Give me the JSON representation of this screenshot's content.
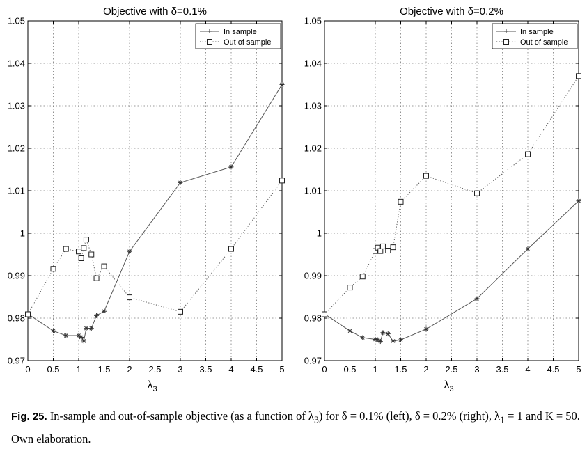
{
  "chart_data": [
    {
      "type": "line",
      "title": "Objective with δ=0.1%",
      "xlabel": "λ3",
      "ylabel": "",
      "xlim": [
        0,
        5
      ],
      "ylim": [
        0.97,
        1.05
      ],
      "xticks": [
        "0",
        "0.5",
        "1",
        "1.5",
        "2",
        "2.5",
        "3",
        "3.5",
        "4",
        "4.5",
        "5"
      ],
      "yticks": [
        "0.97",
        "0.98",
        "0.99",
        "1",
        "1.01",
        "1.02",
        "1.03",
        "1.04",
        "1.05"
      ],
      "grid": true,
      "legend_position": "top-right",
      "series": [
        {
          "name": "In sample",
          "style": "solid-star",
          "color": "#555555",
          "points": [
            [
              0,
              0.981
            ],
            [
              0.5,
              0.977
            ],
            [
              0.75,
              0.9759
            ],
            [
              1.0,
              0.9759
            ],
            [
              1.05,
              0.9755
            ],
            [
              1.1,
              0.9746
            ],
            [
              1.15,
              0.9776
            ],
            [
              1.25,
              0.9776
            ],
            [
              1.35,
              0.9806
            ],
            [
              1.5,
              0.9816
            ],
            [
              2.0,
              0.9957
            ],
            [
              3.0,
              1.0119
            ],
            [
              4.0,
              1.0156
            ],
            [
              5.0,
              1.035
            ]
          ]
        },
        {
          "name": "Out of sample",
          "style": "dotted-square",
          "color": "#555555",
          "points": [
            [
              0,
              0.9809
            ],
            [
              0.5,
              0.9916
            ],
            [
              0.75,
              0.9963
            ],
            [
              1.0,
              0.9957
            ],
            [
              1.05,
              0.9941
            ],
            [
              1.1,
              0.9965
            ],
            [
              1.15,
              0.9985
            ],
            [
              1.25,
              0.995
            ],
            [
              1.35,
              0.9894
            ],
            [
              1.5,
              0.9922
            ],
            [
              2.0,
              0.9849
            ],
            [
              3.0,
              0.9815
            ],
            [
              4.0,
              0.9963
            ],
            [
              5.0,
              1.0124
            ]
          ]
        }
      ]
    },
    {
      "type": "line",
      "title": "Objective with δ=0.2%",
      "xlabel": "λ3",
      "ylabel": "",
      "xlim": [
        0,
        5
      ],
      "ylim": [
        0.97,
        1.05
      ],
      "xticks": [
        "0",
        "0.5",
        "1",
        "1.5",
        "2",
        "2.5",
        "3",
        "3.5",
        "4",
        "4.5",
        "5"
      ],
      "yticks": [
        "0.97",
        "0.98",
        "0.99",
        "1",
        "1.01",
        "1.02",
        "1.03",
        "1.04",
        "1.05"
      ],
      "grid": true,
      "legend_position": "top-right",
      "series": [
        {
          "name": "In sample",
          "style": "solid-star",
          "color": "#555555",
          "points": [
            [
              0,
              0.981
            ],
            [
              0.5,
              0.977
            ],
            [
              0.75,
              0.9754
            ],
            [
              1.0,
              0.975
            ],
            [
              1.05,
              0.9749
            ],
            [
              1.1,
              0.9745
            ],
            [
              1.15,
              0.9766
            ],
            [
              1.25,
              0.9763
            ],
            [
              1.35,
              0.9746
            ],
            [
              1.5,
              0.9749
            ],
            [
              2.0,
              0.9774
            ],
            [
              3.0,
              0.9846
            ],
            [
              4.0,
              0.9963
            ],
            [
              5.0,
              1.0076
            ]
          ]
        },
        {
          "name": "Out of sample",
          "style": "dotted-square",
          "color": "#555555",
          "points": [
            [
              0,
              0.9809
            ],
            [
              0.5,
              0.9872
            ],
            [
              0.75,
              0.9898
            ],
            [
              1.0,
              0.9958
            ],
            [
              1.05,
              0.9966
            ],
            [
              1.1,
              0.9958
            ],
            [
              1.15,
              0.9969
            ],
            [
              1.25,
              0.9959
            ],
            [
              1.35,
              0.9967
            ],
            [
              1.5,
              1.0074
            ],
            [
              2.0,
              1.0135
            ],
            [
              3.0,
              1.0094
            ],
            [
              4.0,
              1.0186
            ],
            [
              5.0,
              1.037
            ]
          ]
        }
      ]
    }
  ],
  "caption": {
    "fig_label": "Fig. 25.",
    "text_a": "In-sample and out-of-sample objective (as a function of λ",
    "sub_a": "3",
    "text_b": ") for δ = 0.1% (left), δ = 0.2% (right), λ",
    "sub_b": "1",
    "text_c": " = 1 and K = 50.",
    "text_d": "Own elaboration."
  }
}
